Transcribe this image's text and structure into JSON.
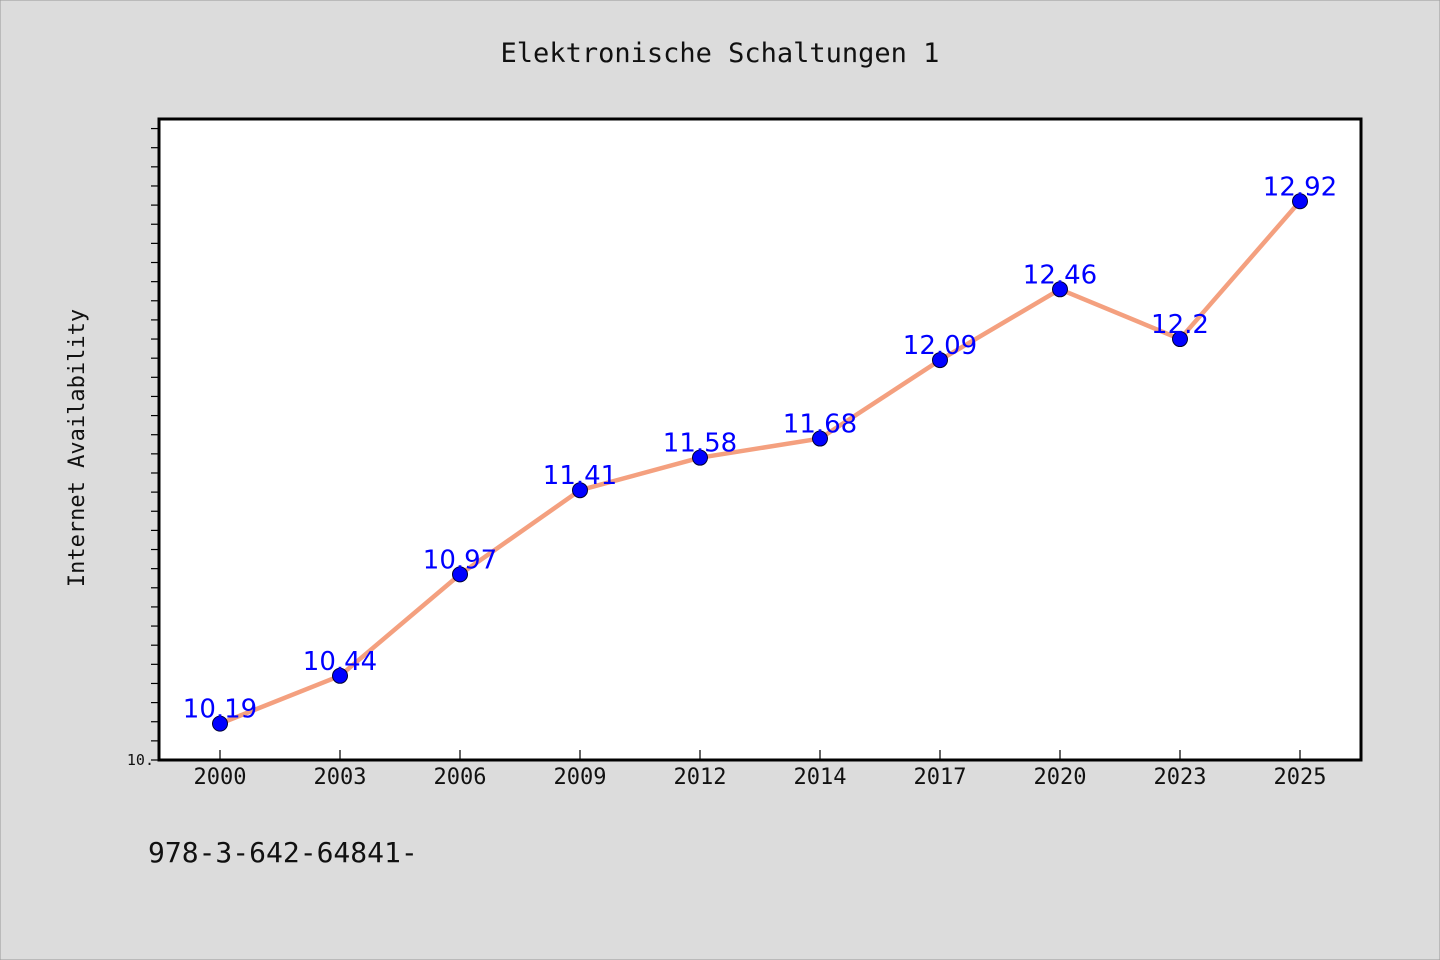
{
  "chart_data": {
    "type": "line",
    "title": "Elektronische Schaltungen 1",
    "ylabel": "Internet Availability",
    "xlabel": "",
    "y_min_label": "10.",
    "ylim": [
      10,
      13.35
    ],
    "categories": [
      "2000",
      "2003",
      "2006",
      "2009",
      "2012",
      "2014",
      "2017",
      "2020",
      "2023",
      "2025"
    ],
    "series": [
      {
        "values": [
          10.19,
          10.44,
          10.97,
          11.41,
          11.58,
          11.68,
          12.09,
          12.46,
          12.2,
          12.92
        ],
        "labels": [
          "10.19",
          "10.44",
          "10.97",
          "11.41",
          "11.58",
          "11.68",
          "12.09",
          "12.46",
          "12.2",
          "12.92"
        ]
      }
    ],
    "line_color": "#f4a07f",
    "marker_color": "#0000ff",
    "label_color": "#0000ff",
    "grid": false,
    "legend": "none"
  },
  "footer": {
    "text": "978-3-642-64841-"
  }
}
